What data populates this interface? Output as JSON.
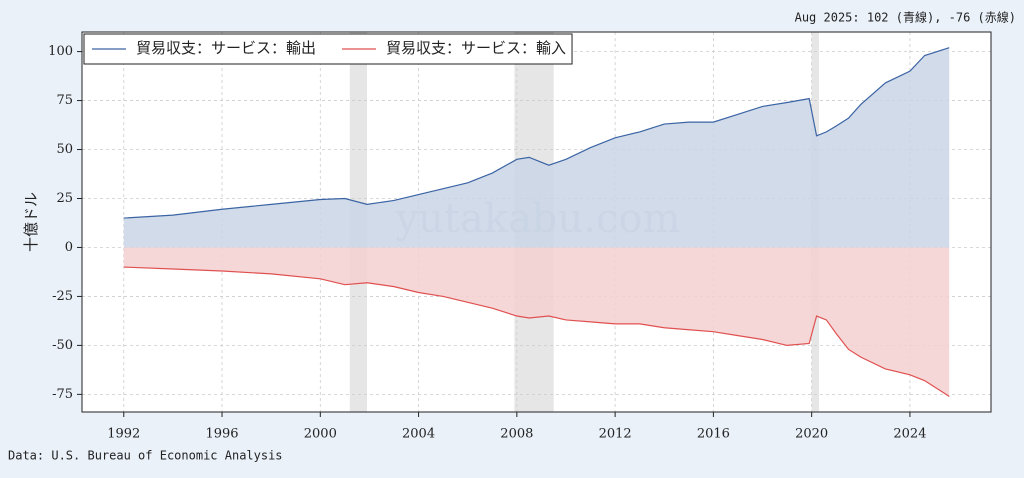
{
  "chart_data": {
    "type": "area",
    "annotation": "Aug 2025: 102 (青線), -76 (赤線)",
    "source": "Data: U.S. Bureau of Economic Analysis",
    "watermark": "yutakabu.com",
    "y_label": "十億ドル",
    "x": [
      1992,
      1994,
      1996,
      1998,
      2000,
      2001,
      2001.9,
      2003,
      2004,
      2005,
      2006,
      2007,
      2008,
      2008.5,
      2009.3,
      2010,
      2011,
      2012,
      2013,
      2014,
      2015,
      2016,
      2017,
      2018,
      2019,
      2019.9,
      2020.2,
      2020.6,
      2021,
      2021.5,
      2022,
      2023,
      2024,
      2024.6,
      2025.6
    ],
    "series": [
      {
        "name": "貿易収支：サービス：輸出",
        "color": "#3b64a4",
        "fill": "#c9d5e6",
        "values": [
          15,
          16.5,
          19.5,
          22,
          24.5,
          25,
          22,
          24,
          27,
          30,
          33,
          38,
          45,
          46,
          42,
          45,
          51,
          56,
          59,
          63,
          64,
          64,
          68,
          72,
          74,
          76,
          57,
          59,
          62,
          66,
          73,
          84,
          90,
          98,
          102
        ]
      },
      {
        "name": "貿易収支：サービス：輸入",
        "color": "#e05050",
        "fill": "#f5d0d0",
        "values": [
          -10,
          -11,
          -12,
          -13.5,
          -16,
          -19,
          -18,
          -20,
          -23,
          -25,
          -28,
          -31,
          -35,
          -36,
          -35,
          -37,
          -38,
          -39,
          -39,
          -41,
          -42,
          -43,
          -45,
          -47,
          -50,
          -49,
          -35,
          -37,
          -44,
          -52,
          -56,
          -62,
          -65,
          -68,
          -76
        ]
      }
    ],
    "recessions": [
      [
        2001.2,
        2001.9
      ],
      [
        2007.9,
        2009.5
      ],
      [
        2020.0,
        2020.3
      ]
    ],
    "recession_color": "#e6e6e6",
    "xlim": [
      1990.3,
      2027.3
    ],
    "xticks": [
      1992,
      1996,
      2000,
      2004,
      2008,
      2012,
      2016,
      2020,
      2024
    ],
    "ylim": [
      -84,
      110
    ],
    "yticks": [
      -75,
      -50,
      -25,
      0,
      25,
      50,
      75,
      100
    ],
    "grid": true,
    "legend": "upper left"
  }
}
